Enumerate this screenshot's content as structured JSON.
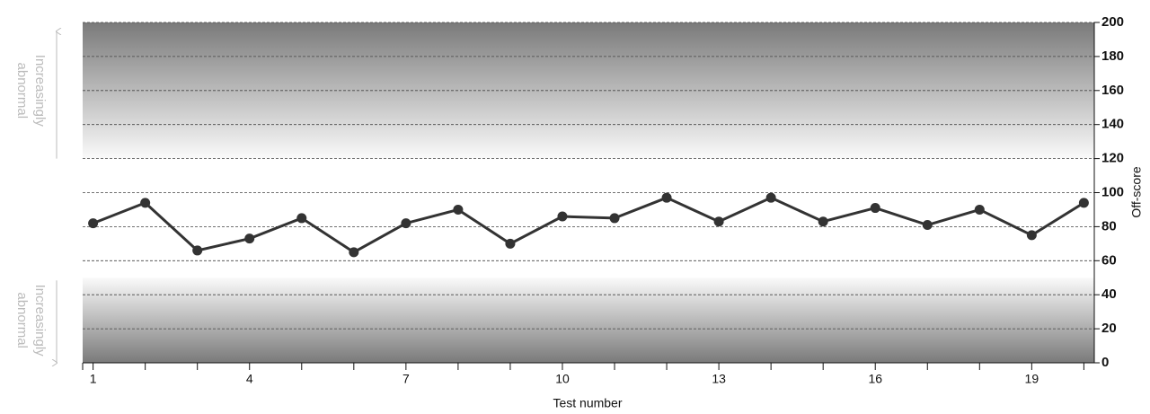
{
  "chart_data": {
    "type": "line",
    "x": [
      1,
      2,
      3,
      4,
      5,
      6,
      7,
      8,
      9,
      10,
      11,
      12,
      13,
      14,
      15,
      16,
      17,
      18,
      19,
      20
    ],
    "series": [
      {
        "color": "#333333",
        "values": [
          82,
          94,
          66,
          73,
          85,
          65,
          82,
          90,
          70,
          86,
          85,
          97,
          83,
          97,
          83,
          91,
          81,
          90,
          75,
          94
        ]
      }
    ],
    "xlim": [
      0.8,
      20.2
    ],
    "xticks": [
      1,
      4,
      7,
      10,
      13,
      16,
      19
    ],
    "xminor": [
      2,
      3,
      5,
      6,
      8,
      9,
      11,
      12,
      14,
      15,
      17,
      18,
      20
    ],
    "ylim": [
      0,
      200
    ],
    "yticks": [
      0,
      20,
      40,
      60,
      80,
      100,
      120,
      140,
      160,
      180,
      200
    ],
    "xlabel": "Test number",
    "ylabel": "Off-score",
    "grid": true,
    "bands": [
      {
        "from": 120,
        "to": 200
      },
      {
        "from": 0,
        "to": 50
      }
    ],
    "annotations": [
      {
        "lines": [
          "Increasingly",
          "abnormal"
        ]
      },
      {
        "lines": [
          "Increasingly",
          "abnormal"
        ]
      }
    ]
  }
}
